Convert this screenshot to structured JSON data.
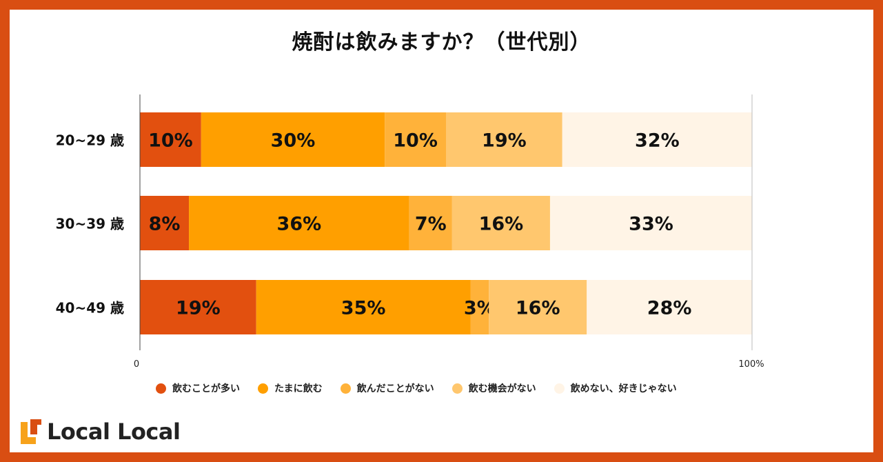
{
  "chart_data": {
    "type": "bar",
    "orientation": "horizontal",
    "stacked": true,
    "title": "焼酎は飲みますか？（世代別）",
    "categories": [
      "20~29 歳",
      "30~39 歳",
      "40~49 歳"
    ],
    "series": [
      {
        "name": "飲むことが多い",
        "color": "#E2500F",
        "values": [
          10,
          8,
          19
        ]
      },
      {
        "name": "たまに飲む",
        "color": "#FF9F00",
        "values": [
          30,
          36,
          35
        ]
      },
      {
        "name": "飲んだことがない",
        "color": "#FFB23A",
        "values": [
          10,
          7,
          3
        ]
      },
      {
        "name": "飲む機会がない",
        "color": "#FFC76E",
        "values": [
          19,
          16,
          16
        ]
      },
      {
        "name": "飲めない、好きじゃない",
        "color": "#FFF4E6",
        "values": [
          32,
          33,
          28
        ]
      }
    ],
    "xlim": [
      0,
      100
    ],
    "x_tick_labels": [
      "0",
      "100%"
    ],
    "legend_position": "bottom",
    "grid": false
  },
  "brand": {
    "name": "Local Local",
    "frame_color": "#D94E12",
    "accent_color": "#F7A21B"
  }
}
